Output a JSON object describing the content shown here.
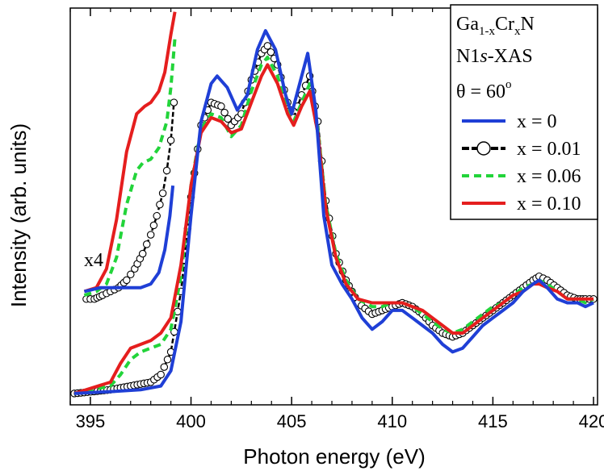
{
  "chart_data": {
    "type": "line",
    "title": "",
    "xlabel": "Photon energy (eV)",
    "ylabel": "Intensity (arb. units)",
    "xlim": [
      394,
      420.2
    ],
    "ylim": [
      0,
      1.05
    ],
    "xticks": [
      395,
      400,
      405,
      410,
      415,
      420
    ],
    "grid": false,
    "legend_position": "top-right",
    "legend": {
      "title_lines": {
        "material_base": "Ga",
        "material_sub1": "1-x",
        "material_mid": "Cr",
        "material_sub2": "x",
        "material_end": "N",
        "edge_base": "N1",
        "edge_italic": "s",
        "edge_end": "-XAS",
        "angle_base": "θ = 60",
        "angle_sup": "o"
      },
      "entries": [
        "x = 0",
        "x = 0.01",
        "x = 0.06",
        "x = 0.10"
      ]
    },
    "annotation": "x4",
    "series": [
      {
        "name": "x = 0",
        "color": "#1f3fd6",
        "style": "solid",
        "x": [
          394.2,
          396,
          397.5,
          398.5,
          399.0,
          399.5,
          400.0,
          400.5,
          401.0,
          401.3,
          401.8,
          402.3,
          402.8,
          403.3,
          403.7,
          404.2,
          404.7,
          405.0,
          405.4,
          405.8,
          406.2,
          406.6,
          407.0,
          407.5,
          408.0,
          408.5,
          409.0,
          409.5,
          410.0,
          410.5,
          411.0,
          411.5,
          412.0,
          412.5,
          413.0,
          413.5,
          414.0,
          414.5,
          415.0,
          415.5,
          416.0,
          416.5,
          417.0,
          417.3,
          417.7,
          418.2,
          418.7,
          419.2,
          419.6,
          420.0
        ],
        "y": [
          0.03,
          0.035,
          0.04,
          0.05,
          0.09,
          0.22,
          0.5,
          0.75,
          0.85,
          0.87,
          0.84,
          0.78,
          0.82,
          0.94,
          0.99,
          0.94,
          0.82,
          0.77,
          0.85,
          0.93,
          0.78,
          0.5,
          0.37,
          0.32,
          0.28,
          0.23,
          0.2,
          0.22,
          0.25,
          0.25,
          0.23,
          0.21,
          0.19,
          0.16,
          0.14,
          0.15,
          0.18,
          0.21,
          0.23,
          0.25,
          0.27,
          0.3,
          0.32,
          0.33,
          0.31,
          0.28,
          0.27,
          0.27,
          0.26,
          0.27
        ]
      },
      {
        "name": "x = 0.01",
        "color": "#000000",
        "style": "circles",
        "x": [
          394.2,
          396,
          397.0,
          398.0,
          398.5,
          399.0,
          399.5,
          400.0,
          400.5,
          401.0,
          401.5,
          402.0,
          402.5,
          403.0,
          403.5,
          403.8,
          404.3,
          404.8,
          405.1,
          405.5,
          405.9,
          406.3,
          406.7,
          407.2,
          407.7,
          408.3,
          409.0,
          409.5,
          410.0,
          410.5,
          411.0,
          411.5,
          412.0,
          412.5,
          413.0,
          413.5,
          414.0,
          414.5,
          415.0,
          415.5,
          416.0,
          416.5,
          417.0,
          417.3,
          417.7,
          418.2,
          418.7,
          419.2,
          419.6,
          420.0
        ],
        "y": [
          0.03,
          0.04,
          0.05,
          0.06,
          0.08,
          0.14,
          0.3,
          0.55,
          0.74,
          0.8,
          0.79,
          0.74,
          0.77,
          0.86,
          0.93,
          0.95,
          0.9,
          0.8,
          0.76,
          0.82,
          0.87,
          0.75,
          0.54,
          0.4,
          0.33,
          0.27,
          0.24,
          0.25,
          0.26,
          0.27,
          0.26,
          0.24,
          0.21,
          0.19,
          0.18,
          0.19,
          0.21,
          0.23,
          0.25,
          0.27,
          0.29,
          0.31,
          0.33,
          0.34,
          0.33,
          0.31,
          0.29,
          0.28,
          0.28,
          0.28
        ]
      },
      {
        "name": "x = 0.06",
        "color": "#22d43a",
        "style": "dashed",
        "x": [
          394.2,
          396,
          396.5,
          397.0,
          397.5,
          398.0,
          398.5,
          399.0,
          399.5,
          400.0,
          400.5,
          401.0,
          401.5,
          402.0,
          402.5,
          403.0,
          403.5,
          403.8,
          404.3,
          404.8,
          405.1,
          405.5,
          405.9,
          406.3,
          406.7,
          407.2,
          407.7,
          408.3,
          409.0,
          409.5,
          410.0,
          410.5,
          411.0,
          411.5,
          412.0,
          412.5,
          413.0,
          413.5,
          414.0,
          414.5,
          415.0,
          415.5,
          416.0,
          416.5,
          417.0,
          417.3,
          417.7,
          418.2,
          418.7,
          419.2,
          419.6,
          420.0
        ],
        "y": [
          0.03,
          0.05,
          0.08,
          0.12,
          0.14,
          0.15,
          0.16,
          0.2,
          0.34,
          0.58,
          0.73,
          0.77,
          0.76,
          0.71,
          0.74,
          0.83,
          0.9,
          0.92,
          0.87,
          0.78,
          0.75,
          0.8,
          0.85,
          0.73,
          0.53,
          0.4,
          0.33,
          0.28,
          0.26,
          0.26,
          0.27,
          0.27,
          0.26,
          0.24,
          0.22,
          0.2,
          0.19,
          0.2,
          0.22,
          0.24,
          0.26,
          0.27,
          0.29,
          0.31,
          0.32,
          0.33,
          0.32,
          0.3,
          0.28,
          0.28,
          0.27,
          0.28
        ]
      },
      {
        "name": "x = 0.10",
        "color": "#e51e1e",
        "style": "solid",
        "x": [
          394.2,
          396,
          396.5,
          397.0,
          397.5,
          398.0,
          398.5,
          399.0,
          399.5,
          400.0,
          400.5,
          401.0,
          401.5,
          402.0,
          402.5,
          403.0,
          403.5,
          403.8,
          404.3,
          404.8,
          405.1,
          405.5,
          405.9,
          406.3,
          406.7,
          407.2,
          407.7,
          408.3,
          409.0,
          409.5,
          410.0,
          410.5,
          411.0,
          411.5,
          412.0,
          412.5,
          413.0,
          413.5,
          414.0,
          414.5,
          415.0,
          415.5,
          416.0,
          416.5,
          417.0,
          417.3,
          417.7,
          418.2,
          418.7,
          419.2,
          419.6,
          420.0
        ],
        "y": [
          0.03,
          0.06,
          0.11,
          0.15,
          0.16,
          0.17,
          0.19,
          0.23,
          0.37,
          0.58,
          0.72,
          0.76,
          0.75,
          0.72,
          0.73,
          0.8,
          0.87,
          0.9,
          0.85,
          0.77,
          0.74,
          0.79,
          0.83,
          0.72,
          0.52,
          0.39,
          0.32,
          0.28,
          0.27,
          0.27,
          0.27,
          0.27,
          0.26,
          0.25,
          0.23,
          0.21,
          0.19,
          0.19,
          0.21,
          0.23,
          0.25,
          0.27,
          0.29,
          0.3,
          0.32,
          0.32,
          0.31,
          0.3,
          0.28,
          0.28,
          0.28,
          0.28
        ]
      }
    ],
    "inset_x4": {
      "baseline": 0.3,
      "series": [
        {
          "name": "x = 0",
          "color": "#1f3fd6",
          "style": "solid",
          "x": [
            394.7,
            395.5,
            396.5,
            397.5,
            398.0,
            398.4,
            398.7,
            398.95,
            399.1
          ],
          "y": [
            0.3,
            0.31,
            0.31,
            0.31,
            0.32,
            0.35,
            0.41,
            0.5,
            0.58
          ]
        },
        {
          "name": "x = 0.01",
          "color": "#000000",
          "style": "circles",
          "x": [
            394.8,
            395.2,
            395.6,
            396.0,
            396.4,
            396.8,
            397.2,
            397.6,
            398.0,
            398.3,
            398.6,
            398.8,
            399.0,
            399.15
          ],
          "y": [
            0.28,
            0.28,
            0.29,
            0.3,
            0.31,
            0.33,
            0.36,
            0.4,
            0.45,
            0.5,
            0.56,
            0.62,
            0.7,
            0.8
          ]
        },
        {
          "name": "x = 0.06",
          "color": "#22d43a",
          "style": "dashed",
          "x": [
            394.7,
            395.3,
            395.8,
            396.3,
            396.8,
            397.3,
            397.6,
            398.0,
            398.4,
            398.8,
            399.0,
            399.2
          ],
          "y": [
            0.29,
            0.3,
            0.32,
            0.39,
            0.53,
            0.62,
            0.64,
            0.65,
            0.68,
            0.75,
            0.84,
            0.97
          ]
        },
        {
          "name": "x = 0.10",
          "color": "#e51e1e",
          "style": "solid",
          "x": [
            394.7,
            395.3,
            395.8,
            396.3,
            396.8,
            397.3,
            397.7,
            398.0,
            398.4,
            398.7,
            399.0,
            399.2
          ],
          "y": [
            0.3,
            0.31,
            0.36,
            0.49,
            0.67,
            0.77,
            0.79,
            0.8,
            0.83,
            0.88,
            0.98,
            1.04
          ]
        }
      ]
    }
  }
}
